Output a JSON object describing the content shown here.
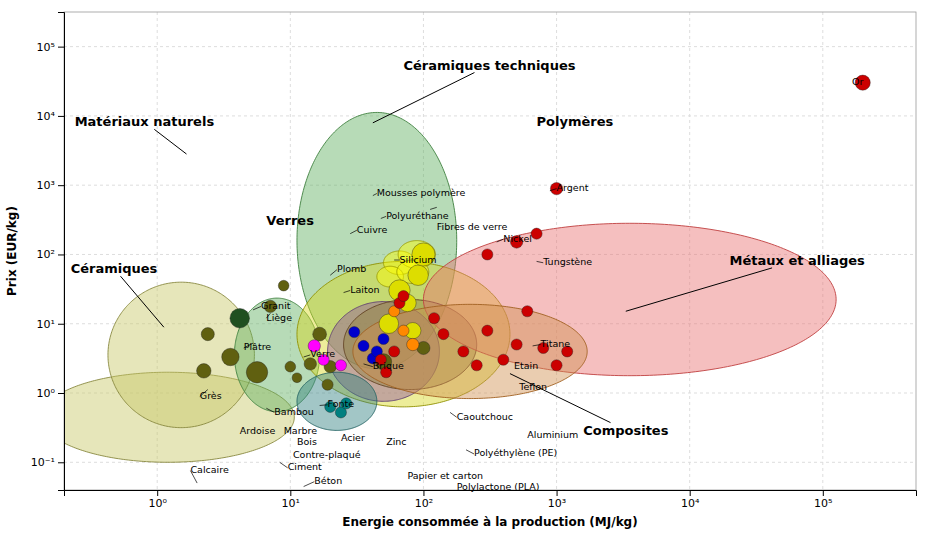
{
  "chart_data": {
    "type": "scatter",
    "xlabel": "Energie consommée à la production (MJ/kg)",
    "ylabel": "Prix (EUR/kg)",
    "log": true,
    "grid": true,
    "xlim": [
      0.1995,
      501200
    ],
    "ylim": [
      0.03981,
      316200
    ],
    "xticks": [
      {
        "value": 1,
        "label": "10⁰"
      },
      {
        "value": 10,
        "label": "10¹"
      },
      {
        "value": 100,
        "label": "10²"
      },
      {
        "value": 1000,
        "label": "10³"
      },
      {
        "value": 10000,
        "label": "10⁴"
      },
      {
        "value": 100000,
        "label": "10⁵"
      }
    ],
    "yticks": [
      {
        "value": 0.1,
        "label": "10⁻¹"
      },
      {
        "value": 1,
        "label": "10⁰"
      },
      {
        "value": 10,
        "label": "10¹"
      },
      {
        "value": 100,
        "label": "10²"
      },
      {
        "value": 1000,
        "label": "10³"
      },
      {
        "value": 10000,
        "label": "10⁴"
      },
      {
        "value": 100000,
        "label": "10⁵"
      }
    ],
    "x": [
      2.399,
      3.548,
      10,
      2.239,
      5.623,
      19.95,
      50.12,
      100,
      4.169,
      7.079,
      8.913,
      11.22,
      14.13,
      16.6,
      19.95,
      23.99,
      26.3,
      19.05,
      15.14,
      17.78,
      23.99,
      30.2,
      35.48,
      41.69,
      44.67,
      50.12,
      54.95,
      66.07,
      75.86,
      83.18,
      91.2,
      100,
      60.26,
      70.79,
      83.18,
      47.86,
      52.48,
      60.26,
      66.07,
      70.79,
      120.2,
      141.3,
      199.5,
      251.2,
      302,
      398.1,
      501.2,
      602.6,
      794.3,
      1000,
      1202,
      302,
      501.2,
      707.9,
      1000,
      199500
    ],
    "y": [
      7.079,
      3.311,
      2.399,
      2.089,
      1.995,
      2.399,
      2.818,
      4.467,
      12.02,
      17.78,
      35.48,
      1.66,
      2.63,
      7.079,
      0.631,
      0.5248,
      0.7079,
      1.318,
      4.786,
      3.02,
      2.512,
      7.586,
      4.786,
      3.162,
      3.981,
      6.026,
      10,
      30.2,
      19.95,
      7.943,
      50.12,
      100,
      15.14,
      7.943,
      5.012,
      3.02,
      1.995,
      3.981,
      19.95,
      25.12,
      12.02,
      7.079,
      3.981,
      2.512,
      7.943,
      3.02,
      5.012,
      15.14,
      4.467,
      2.512,
      3.981,
      100,
      151.4,
      199.5,
      891.3,
      30200
    ],
    "sizes": [
      90,
      160,
      60,
      110,
      240,
      80,
      140,
      90,
      200,
      80,
      60,
      50,
      80,
      100,
      65,
      65,
      65,
      65,
      80,
      65,
      65,
      65,
      65,
      65,
      65,
      65,
      200,
      240,
      160,
      140,
      220,
      280,
      65,
      65,
      80,
      65,
      65,
      65,
      65,
      65,
      65,
      65,
      65,
      65,
      65,
      65,
      65,
      65,
      65,
      65,
      65,
      65,
      80,
      65,
      80,
      120
    ],
    "colors": [
      "#606010",
      "#606010",
      "#606010",
      "#606010",
      "#606010",
      "#606010",
      "#606010",
      "#606010",
      "#205020",
      "#606010",
      "#606010",
      "#606010",
      "#606010",
      "#606010",
      "#008080",
      "#008080",
      "#008080",
      "#606010",
      "#ff00ff",
      "#ff00ff",
      "#ff00ff",
      "#0000cc",
      "#0000cc",
      "#0000cc",
      "#0000cc",
      "#0000cc",
      "#dddd00",
      "#dddd00",
      "#dddd00",
      "#dddd00",
      "#dddd00",
      "#dddd00",
      "#ff8800",
      "#ff8800",
      "#ff8800",
      "#cc0000",
      "#cc0000",
      "#cc0000",
      "#cc0000",
      "#cc0000",
      "#cc0000",
      "#cc0000",
      "#cc0000",
      "#cc0000",
      "#cc0000",
      "#cc0000",
      "#cc0000",
      "#cc0000",
      "#cc0000",
      "#cc0000",
      "#cc0000",
      "#cc0000",
      "#cc0000",
      "#cc0000",
      "#cc0000",
      "#cc0000"
    ],
    "regions": [
      {
        "cx": 1.202,
        "cy": 0.4467,
        "rx_decades": 0.95,
        "ry_decades": 0.65,
        "angle": 5,
        "color": "#c8c866",
        "edge": "#888840"
      },
      {
        "cx": 1.514,
        "cy": 3.548,
        "rx_decades": 0.55,
        "ry_decades": 1.05,
        "angle": 12,
        "color": "#c8c866",
        "edge": "#888840"
      },
      {
        "cx": 7.943,
        "cy": 3.548,
        "rx_decades": 0.32,
        "ry_decades": 0.82,
        "angle": -5,
        "color": "#60b060",
        "edge": "#408040"
      },
      {
        "cx": 44.67,
        "cy": 158.5,
        "rx_decades": 0.6,
        "ry_decades": 1.85,
        "angle": -8,
        "color": "#60b060",
        "edge": "#408040"
      },
      {
        "cx": 70.79,
        "cy": 7.079,
        "rx_decades": 0.8,
        "ry_decades": 1.05,
        "angle": 8,
        "color": "#d8d820",
        "edge": "#909000"
      },
      {
        "cx": 50.12,
        "cy": 3.981,
        "rx_decades": 0.42,
        "ry_decades": 0.72,
        "angle": 0,
        "color": "#9055a0",
        "edge": "#604070"
      },
      {
        "cx": 22.39,
        "cy": 0.7586,
        "rx_decades": 0.3,
        "ry_decades": 0.42,
        "angle": 0,
        "color": "#308080",
        "edge": "#206060"
      },
      {
        "cx": 79.43,
        "cy": 5.012,
        "rx_decades": 0.5,
        "ry_decades": 0.65,
        "angle": 5,
        "color": "#908040",
        "edge": "#604020"
      },
      {
        "cx": 3548,
        "cy": 22.39,
        "rx_decades": 1.55,
        "ry_decades": 1.1,
        "angle": -28,
        "color": "#e87070",
        "edge": "#c04040"
      },
      {
        "cx": 223.9,
        "cy": 3.981,
        "rx_decades": 0.88,
        "ry_decades": 0.68,
        "angle": -22,
        "color": "#d09050",
        "edge": "#a06020"
      },
      {
        "cx": 66.07,
        "cy": 75.86,
        "rx_decades": 0.12,
        "ry_decades": 0.17,
        "angle": 0,
        "color": "#ffff00",
        "edge": "#999900"
      },
      {
        "cx": 89.13,
        "cy": 100,
        "rx_decades": 0.14,
        "ry_decades": 0.2,
        "angle": 0,
        "color": "#ffff00",
        "edge": "#999900"
      },
      {
        "cx": 56.23,
        "cy": 47.86,
        "rx_decades": 0.1,
        "ry_decades": 0.15,
        "angle": 0,
        "color": "#ffff00",
        "edge": "#999900"
      },
      {
        "cx": 83.18,
        "cy": 56.23,
        "rx_decades": 0.12,
        "ry_decades": 0.17,
        "angle": 0,
        "color": "#ffff00",
        "edge": "#999900"
      }
    ],
    "annotations": [
      {
        "text": "Calcaire",
        "x": 1.778,
        "y": 0.07586
      },
      {
        "text": "Grès",
        "x": 2.089,
        "y": 0.8913
      },
      {
        "text": "Ardoise",
        "x": 4.169,
        "y": 0.2818
      },
      {
        "text": "Marbre",
        "x": 8.913,
        "y": 0.2818
      },
      {
        "text": "Plâtre",
        "x": 4.467,
        "y": 4.467
      },
      {
        "text": "Liège",
        "x": 6.607,
        "y": 12.02
      },
      {
        "text": "Brique",
        "x": 41.69,
        "y": 2.399
      },
      {
        "text": "Béton",
        "x": 15.14,
        "y": 0.05248
      },
      {
        "text": "Granit",
        "x": 6.026,
        "y": 17.78
      },
      {
        "text": "Bambou",
        "x": 7.586,
        "y": 0.5248
      },
      {
        "text": "Ciment",
        "x": 9.55,
        "y": 0.08318
      },
      {
        "text": "Verre",
        "x": 14.13,
        "y": 3.548
      },
      {
        "text": "Fonte",
        "x": 19.05,
        "y": 0.6761
      },
      {
        "text": "Bois",
        "x": 11.22,
        "y": 0.2239
      },
      {
        "text": "Contre-plaqué",
        "x": 10.47,
        "y": 0.1259
      },
      {
        "text": "Acier",
        "x": 23.99,
        "y": 0.2239
      },
      {
        "text": "Zinc",
        "x": 52.48,
        "y": 0.1905
      },
      {
        "text": "Papier et carton",
        "x": 75.86,
        "y": 0.0631
      },
      {
        "text": "Plomb",
        "x": 22.39,
        "y": 60.26
      },
      {
        "text": "Cuivre",
        "x": 31.62,
        "y": 223.9
      },
      {
        "text": "Laiton",
        "x": 28.18,
        "y": 30.2
      },
      {
        "text": "Silicium",
        "x": 66.07,
        "y": 83.18
      },
      {
        "text": "Polyuréthane",
        "x": 52.48,
        "y": 354.8
      },
      {
        "text": "Mousses polymère",
        "x": 44.67,
        "y": 758.6
      },
      {
        "text": "Fibres de verre",
        "x": 125.9,
        "y": 478.6
      },
      {
        "text": "Caoutchouc",
        "x": 177.8,
        "y": 0.4467
      },
      {
        "text": "Polyéthylène (PE)",
        "x": 239.9,
        "y": 0.1318
      },
      {
        "text": "Polylactone (PLA)",
        "x": 177.8,
        "y": 0.07943
      },
      {
        "text": "Aluminium",
        "x": 602.6,
        "y": 0.2399
      },
      {
        "text": "Teflon",
        "x": 524.8,
        "y": 1.202
      },
      {
        "text": "Etain",
        "x": 478.6,
        "y": 2.399
      },
      {
        "text": "Titane",
        "x": 758.6,
        "y": 5.012
      },
      {
        "text": "Tungstène",
        "x": 794.3,
        "y": 75.86
      },
      {
        "text": "Nickel",
        "x": 398.1,
        "y": 166
      },
      {
        "text": "Argent",
        "x": 1000,
        "y": 891.3
      },
      {
        "text": "Or",
        "x": 166000,
        "y": 30200
      }
    ],
    "category_labels": [
      {
        "text": "Matériaux naturels",
        "x": 0.2399,
        "y": 7943,
        "arrow_x": 1.66,
        "arrow_y": 2818
      },
      {
        "text": "Céramiques",
        "x": 0.2239,
        "y": 60.26,
        "arrow_x": 1.122,
        "arrow_y": 8.913
      },
      {
        "text": "Verres",
        "x": 6.607,
        "y": 302
      },
      {
        "text": "Céramiques techniques",
        "x": 70.79,
        "y": 52480,
        "arrow_x": 41.69,
        "arrow_y": 7943
      },
      {
        "text": "Polymères",
        "x": 707.9,
        "y": 7943
      },
      {
        "text": "Métaux et alliages",
        "x": 19950,
        "y": 79.43,
        "arrow_x": 3311,
        "arrow_y": 15.14
      },
      {
        "text": "Composites",
        "x": 1585,
        "y": 0.2818,
        "arrow_x": 446.7,
        "arrow_y": 1.905
      }
    ],
    "leader_lines": [
      {
        "x1": 1.778,
        "y1": 0.07586,
        "x2": 1.995,
        "y2": 0.05012
      },
      {
        "x1": 2.089,
        "y1": 0.8913,
        "x2": 2.399,
        "y2": 1.122
      },
      {
        "x1": 4.467,
        "y1": 4.467,
        "x2": 5.248,
        "y2": 5.248
      },
      {
        "x1": 6.607,
        "y1": 12.02,
        "x2": 7.079,
        "y2": 14.13
      },
      {
        "x1": 41.69,
        "y1": 2.399,
        "x2": 35.48,
        "y2": 2.63
      },
      {
        "x1": 15.14,
        "y1": 0.05248,
        "x2": 12.59,
        "y2": 0.04467
      },
      {
        "x1": 6.026,
        "y1": 17.78,
        "x2": 5.248,
        "y2": 15.85
      },
      {
        "x1": 7.586,
        "y1": 0.5248,
        "x2": 6.607,
        "y2": 0.6026
      },
      {
        "x1": 9.55,
        "y1": 0.08318,
        "x2": 8.318,
        "y2": 0.1
      },
      {
        "x1": 14.13,
        "y1": 3.548,
        "x2": 12.59,
        "y2": 3.311
      },
      {
        "x1": 19.05,
        "y1": 0.6761,
        "x2": 16.6,
        "y2": 0.6607
      },
      {
        "x1": 22.39,
        "y1": 60.26,
        "x2": 19.95,
        "y2": 50.12
      },
      {
        "x1": 31.62,
        "y1": 223.9,
        "x2": 28.18,
        "y2": 199.5
      },
      {
        "x1": 28.18,
        "y1": 30.2,
        "x2": 25.12,
        "y2": 28.18
      },
      {
        "x1": 66.07,
        "y1": 83.18,
        "x2": 60.26,
        "y2": 83.18
      },
      {
        "x1": 52.48,
        "y1": 354.8,
        "x2": 47.86,
        "y2": 331.1
      },
      {
        "x1": 44.67,
        "y1": 758.6,
        "x2": 41.69,
        "y2": 707.9
      },
      {
        "x1": 125.9,
        "y1": 478.6,
        "x2": 112.2,
        "y2": 446.7
      },
      {
        "x1": 177.8,
        "y1": 0.4467,
        "x2": 158.5,
        "y2": 0.5248
      },
      {
        "x1": 239.9,
        "y1": 0.1318,
        "x2": 208.9,
        "y2": 0.1514
      },
      {
        "x1": 758.6,
        "y1": 5.012,
        "x2": 660.7,
        "y2": 4.786
      },
      {
        "x1": 794.3,
        "y1": 75.86,
        "x2": 707.9,
        "y2": 79.43
      },
      {
        "x1": 398.1,
        "y1": 166,
        "x2": 354.8,
        "y2": 151.4
      },
      {
        "x1": 1000,
        "y1": 891.3,
        "x2": 891.3,
        "y2": 831.8
      }
    ]
  }
}
